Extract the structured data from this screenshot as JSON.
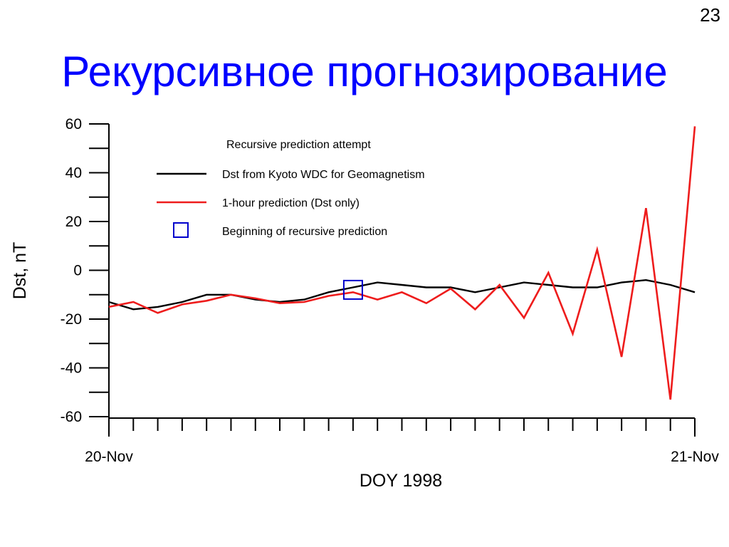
{
  "slide": {
    "number": "23",
    "title": "Рекурсивное прогнозирование"
  },
  "colors": {
    "title": "#0000ff",
    "observed": "#000000",
    "prediction": "#ee1c1c",
    "marker": "#0000cc"
  },
  "chart_data": {
    "type": "line",
    "title": "",
    "xlabel": "DOY 1998",
    "ylabel": "Dst, nT",
    "ylim": [
      -60,
      60
    ],
    "yticks": [
      -60,
      -40,
      -20,
      0,
      20,
      40,
      60
    ],
    "yticks_minor_step": 10,
    "x_hours_range": [
      0,
      24
    ],
    "xtick_count": 25,
    "xtick_labels": [
      {
        "x": 0,
        "label": "20-Nov"
      },
      {
        "x": 24,
        "label": "21-Nov"
      }
    ],
    "legend_placement": "top-left",
    "legend_header": "Recursive prediction attempt",
    "grid": false,
    "series": [
      {
        "name": "Dst from Kyoto WDC for Geomagnetism",
        "color": "#000000",
        "x": [
          0,
          1,
          2,
          3,
          4,
          5,
          6,
          7,
          8,
          9,
          10,
          11,
          12,
          13,
          14,
          15,
          16,
          17,
          18,
          19,
          20,
          21,
          22,
          23,
          24
        ],
        "y": [
          -13,
          -16,
          -15,
          -13,
          -10,
          -10,
          -12,
          -13,
          -12,
          -9,
          -7,
          -5,
          -6,
          -7,
          -7,
          -9,
          -7,
          -5,
          -6,
          -7,
          -7,
          -5,
          -4,
          -6,
          -9
        ]
      },
      {
        "name": "1-hour prediction (Dst only)",
        "color": "#ee1c1c",
        "x": [
          0,
          1,
          2,
          3,
          4,
          5,
          6,
          7,
          8,
          9,
          10,
          11,
          12,
          13,
          14,
          15,
          16,
          17,
          18,
          19,
          20,
          21,
          22,
          23,
          24
        ],
        "y": [
          -15,
          -13,
          -17.5,
          -14,
          -12.5,
          -10,
          -11.5,
          -13.5,
          -13,
          -10.5,
          -9,
          -12,
          -9,
          -13.5,
          -7.5,
          -16,
          -6,
          -19.5,
          -1,
          -26,
          8.5,
          -35.5,
          25.5,
          -53,
          59
        ]
      }
    ],
    "markers": [
      {
        "name": "Beginning of recursive prediction",
        "x": 10,
        "y": -8,
        "shape": "square",
        "color": "#0000cc"
      }
    ]
  }
}
